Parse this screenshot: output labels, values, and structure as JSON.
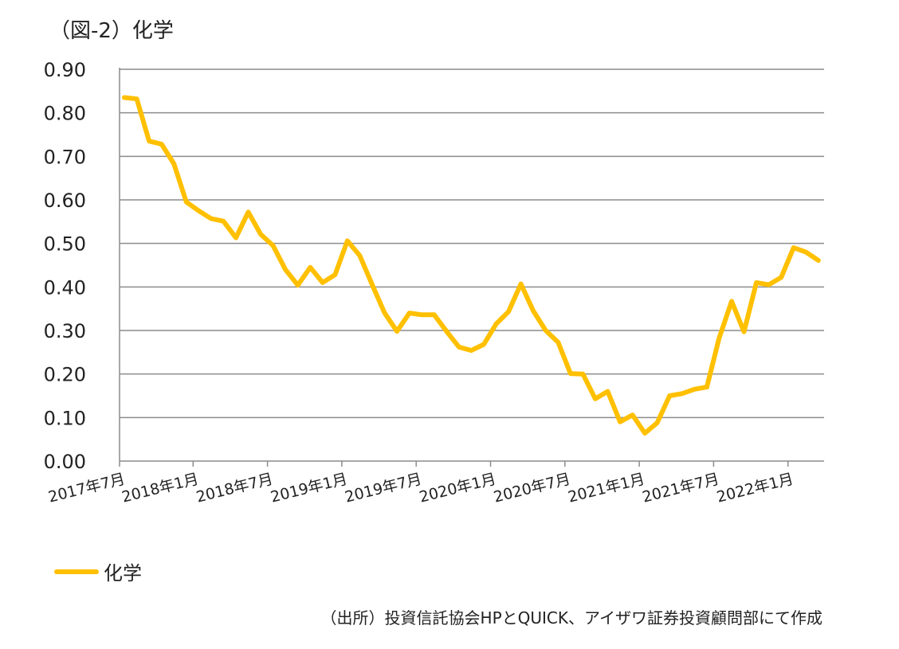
{
  "title": "（図-2）化学",
  "source": "（出所）投資信託協会HPとQUICK、アイザワ証券投資顧問部にて作成",
  "chart_data": {
    "type": "line",
    "title": "（図-2）化学",
    "xlabel": "",
    "ylabel": "",
    "ylim": [
      0,
      0.9
    ],
    "yticks": [
      "0.00",
      "0.10",
      "0.20",
      "0.30",
      "0.40",
      "0.50",
      "0.60",
      "0.70",
      "0.80",
      "0.90"
    ],
    "xtick_labels": [
      "2017年7月",
      "2018年1月",
      "2018年7月",
      "2019年1月",
      "2019年7月",
      "2020年1月",
      "2020年7月",
      "2021年1月",
      "2021年7月",
      "2022年1月"
    ],
    "grid": "horizontal",
    "legend_position": "bottom-left",
    "color": "#FFC000",
    "series": [
      {
        "name": "化学",
        "values": [
          0.835,
          0.832,
          0.735,
          0.728,
          0.683,
          0.595,
          0.575,
          0.557,
          0.551,
          0.513,
          0.572,
          0.521,
          0.495,
          0.44,
          0.404,
          0.445,
          0.41,
          0.428,
          0.506,
          0.472,
          0.405,
          0.34,
          0.298,
          0.34,
          0.336,
          0.336,
          0.298,
          0.262,
          0.254,
          0.268,
          0.315,
          0.343,
          0.407,
          0.345,
          0.3,
          0.273,
          0.201,
          0.2,
          0.143,
          0.16,
          0.09,
          0.106,
          0.064,
          0.088,
          0.15,
          0.155,
          0.165,
          0.17,
          0.283,
          0.367,
          0.297,
          0.41,
          0.405,
          0.422,
          0.49,
          0.48,
          0.461
        ]
      }
    ]
  }
}
